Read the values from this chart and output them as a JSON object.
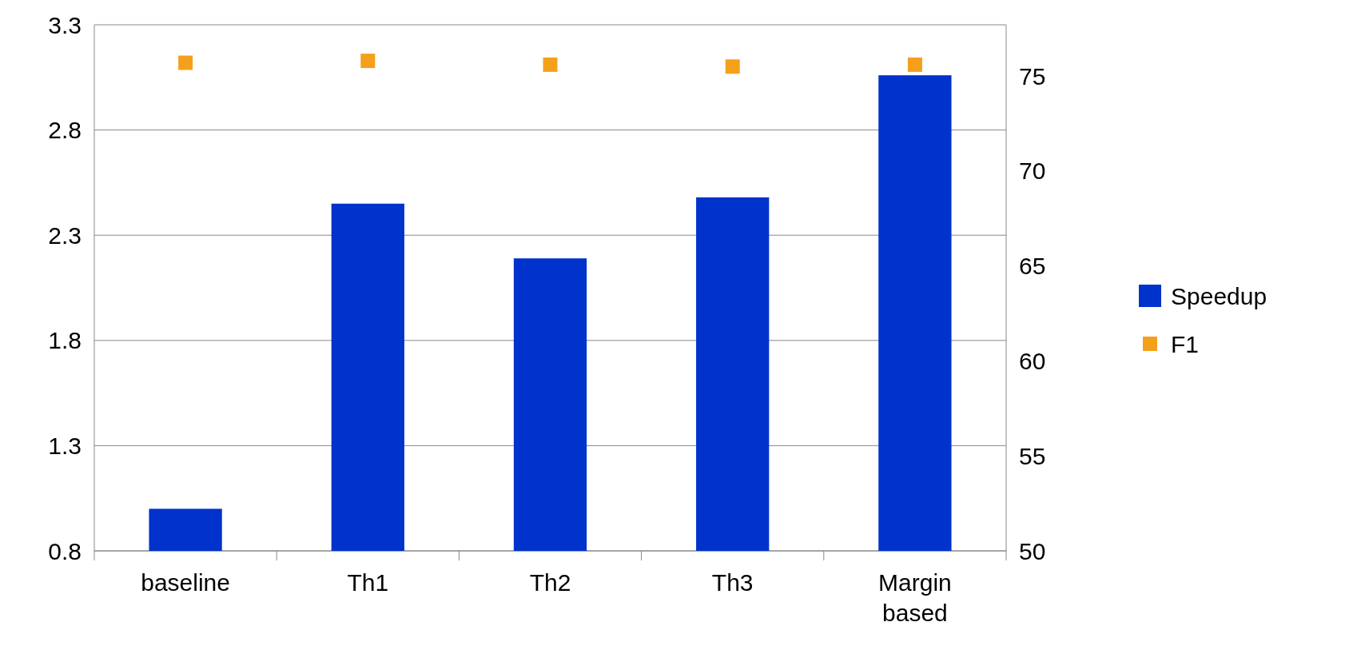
{
  "chart_data": {
    "type": "bar",
    "categories": [
      "baseline",
      "Th1",
      "Th2",
      "Th3",
      "Margin based"
    ],
    "series": [
      {
        "name": "Speedup",
        "color": "#0033cc",
        "values": [
          1.0,
          2.45,
          2.19,
          2.48,
          3.06
        ]
      },
      {
        "name": "F1",
        "type": "scatter",
        "axis": "y2",
        "color": "#f5a01a",
        "marker": "square",
        "values": [
          75.7,
          75.8,
          75.6,
          75.5,
          75.6
        ]
      }
    ],
    "ylim": [
      0.8,
      3.3
    ],
    "yticks": [
      0.8,
      1.3,
      1.8,
      2.3,
      2.8,
      3.3
    ],
    "y2lim": [
      50,
      77.7
    ],
    "y2ticks": [
      50,
      55,
      60,
      65,
      70,
      75
    ],
    "grid": "y",
    "legend": "right"
  }
}
